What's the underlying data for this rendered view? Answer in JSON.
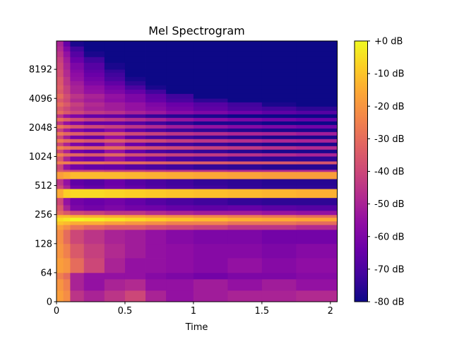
{
  "chart_data": {
    "type": "heatmap",
    "title": "Mel Spectrogram",
    "xlabel": "Time",
    "ylabel": "",
    "xlim": [
      0,
      2.05
    ],
    "ylim": [
      0,
      16120
    ],
    "y_scale": "mel (symlog, octave ticks)",
    "x_ticks": [
      "0",
      "0.5",
      "1",
      "1.5",
      "2"
    ],
    "x_tick_values": [
      0,
      0.5,
      1,
      1.5,
      2
    ],
    "y_ticks": [
      "0",
      "64",
      "128",
      "256",
      "512",
      "1024",
      "2048",
      "4096",
      "8192"
    ],
    "y_tick_values": [
      0,
      64,
      128,
      256,
      512,
      1024,
      2048,
      4096,
      8192
    ],
    "colormap": "plasma",
    "colorbar": {
      "range_db": [
        -80,
        0
      ],
      "tick_labels": [
        "+0 dB",
        "-10 dB",
        "-20 dB",
        "-30 dB",
        "-40 dB",
        "-50 dB",
        "-60 dB",
        "-70 dB",
        "-80 dB"
      ],
      "tick_values": [
        0,
        -10,
        -20,
        -30,
        -40,
        -50,
        -60,
        -70,
        -80
      ]
    },
    "time_edges_s": [
      0,
      0.05,
      0.1,
      0.2,
      0.35,
      0.5,
      0.65,
      0.8,
      1.0,
      1.25,
      1.5,
      1.75,
      2.05
    ],
    "rows": [
      {
        "f": [
          0,
          25
        ],
        "db": [
          -18,
          -22,
          -45,
          -50,
          -45,
          -40,
          -50,
          -55,
          -52,
          -50,
          -50,
          -48
        ]
      },
      {
        "f": [
          25,
          50
        ],
        "db": [
          -20,
          -25,
          -50,
          -55,
          -50,
          -48,
          -55,
          -55,
          -52,
          -55,
          -52,
          -55
        ]
      },
      {
        "f": [
          50,
          64
        ],
        "db": [
          -25,
          -30,
          -50,
          -55,
          -55,
          -55,
          -58,
          -60,
          -62,
          -60,
          -60,
          -58
        ]
      },
      {
        "f": [
          64,
          91
        ],
        "db": [
          -18,
          -20,
          -30,
          -40,
          -50,
          -55,
          -55,
          -56,
          -58,
          -55,
          -58,
          -56
        ]
      },
      {
        "f": [
          91,
          128
        ],
        "db": [
          -20,
          -25,
          -35,
          -42,
          -48,
          -52,
          -55,
          -56,
          -58,
          -58,
          -60,
          -58
        ]
      },
      {
        "f": [
          128,
          179
        ],
        "db": [
          -22,
          -30,
          -40,
          -45,
          -50,
          -52,
          -55,
          -58,
          -60,
          -60,
          -62,
          -62
        ]
      },
      {
        "f": [
          179,
          201
        ],
        "db": [
          -18,
          -22,
          -28,
          -32,
          -35,
          -35,
          -38,
          -40,
          -42,
          -45,
          -45,
          -48
        ]
      },
      {
        "f": [
          201,
          219
        ],
        "db": [
          -10,
          -12,
          -15,
          -15,
          -18,
          -20,
          -22,
          -25,
          -25,
          -28,
          -28,
          -30
        ]
      },
      {
        "f": [
          219,
          239
        ],
        "db": [
          -5,
          -3,
          -1,
          -2,
          -4,
          -6,
          -8,
          -10,
          -12,
          -14,
          -15,
          -16
        ]
      },
      {
        "f": [
          239,
          255
        ],
        "db": [
          -12,
          -12,
          -14,
          -15,
          -16,
          -18,
          -20,
          -22,
          -24,
          -26,
          -28,
          -30
        ]
      },
      {
        "f": [
          255,
          282
        ],
        "db": [
          -30,
          -35,
          -40,
          -42,
          -45,
          -45,
          -48,
          -50,
          -52,
          -52,
          -54,
          -55
        ]
      },
      {
        "f": [
          282,
          322
        ],
        "db": [
          -35,
          -50,
          -60,
          -62,
          -60,
          -62,
          -63,
          -65,
          -66,
          -65,
          -67,
          -68
        ]
      },
      {
        "f": [
          322,
          383
        ],
        "db": [
          -40,
          -55,
          -62,
          -64,
          -62,
          -65,
          -68,
          -70,
          -72,
          -74,
          -75,
          -75
        ]
      },
      {
        "f": [
          383,
          474
        ],
        "db": [
          -15,
          -8,
          -6,
          -6,
          -7,
          -8,
          -9,
          -10,
          -11,
          -12,
          -13,
          -14
        ]
      },
      {
        "f": [
          474,
          516
        ],
        "db": [
          -40,
          -50,
          -62,
          -65,
          -62,
          -65,
          -68,
          -70,
          -72,
          -74,
          -75,
          -75
        ]
      },
      {
        "f": [
          516,
          601
        ],
        "db": [
          -45,
          -55,
          -66,
          -68,
          -64,
          -68,
          -70,
          -72,
          -74,
          -75,
          -76,
          -76
        ]
      },
      {
        "f": [
          601,
          713
        ],
        "db": [
          -18,
          -15,
          -12,
          -12,
          -12,
          -13,
          -14,
          -15,
          -16,
          -17,
          -18,
          -18
        ]
      },
      {
        "f": [
          713,
          750
        ],
        "db": [
          -35,
          -38,
          -40,
          -40,
          -42,
          -42,
          -44,
          -45,
          -46,
          -48,
          -48,
          -48
        ]
      },
      {
        "f": [
          750,
          855
        ],
        "db": [
          -40,
          -55,
          -62,
          -65,
          -65,
          -68,
          -70,
          -72,
          -74,
          -75,
          -76,
          -76
        ]
      },
      {
        "f": [
          855,
          916
        ],
        "db": [
          -25,
          -25,
          -28,
          -28,
          -30,
          -30,
          -32,
          -33,
          -34,
          -35,
          -35,
          -36
        ]
      },
      {
        "f": [
          916,
          1030
        ],
        "db": [
          -35,
          -50,
          -60,
          -62,
          -55,
          -62,
          -66,
          -70,
          -72,
          -74,
          -75,
          -75
        ]
      },
      {
        "f": [
          1030,
          1114
        ],
        "db": [
          -25,
          -30,
          -32,
          -35,
          -32,
          -38,
          -40,
          -42,
          -44,
          -46,
          -48,
          -50
        ]
      },
      {
        "f": [
          1114,
          1213
        ],
        "db": [
          -40,
          -50,
          -62,
          -65,
          -55,
          -65,
          -70,
          -72,
          -74,
          -76,
          -78,
          -78
        ]
      },
      {
        "f": [
          1213,
          1319
        ],
        "db": [
          -24,
          -28,
          -30,
          -33,
          -30,
          -36,
          -38,
          -40,
          -42,
          -44,
          -46,
          -48
        ]
      },
      {
        "f": [
          1319,
          1435
        ],
        "db": [
          -40,
          -50,
          -60,
          -64,
          -52,
          -64,
          -70,
          -72,
          -74,
          -76,
          -78,
          -78
        ]
      },
      {
        "f": [
          1435,
          1561
        ],
        "db": [
          -26,
          -30,
          -33,
          -36,
          -34,
          -38,
          -40,
          -43,
          -45,
          -47,
          -49,
          -50
        ]
      },
      {
        "f": [
          1561,
          1699
        ],
        "db": [
          -40,
          -52,
          -62,
          -65,
          -56,
          -66,
          -70,
          -72,
          -74,
          -76,
          -78,
          -78
        ]
      },
      {
        "f": [
          1699,
          1848
        ],
        "db": [
          -27,
          -31,
          -34,
          -37,
          -36,
          -40,
          -42,
          -45,
          -47,
          -49,
          -50,
          -52
        ]
      },
      {
        "f": [
          1848,
          2010
        ],
        "db": [
          -42,
          -52,
          -60,
          -64,
          -58,
          -66,
          -70,
          -73,
          -75,
          -77,
          -78,
          -78
        ]
      },
      {
        "f": [
          2010,
          2187
        ],
        "db": [
          -28,
          -32,
          -36,
          -40,
          -42,
          -45,
          -48,
          -52,
          -55,
          -58,
          -60,
          -62
        ]
      },
      {
        "f": [
          2187,
          2380
        ],
        "db": [
          -45,
          -55,
          -60,
          -65,
          -65,
          -68,
          -72,
          -75,
          -78,
          -78,
          -80,
          -80
        ]
      },
      {
        "f": [
          2380,
          2590
        ],
        "db": [
          -29,
          -33,
          -38,
          -42,
          -44,
          -47,
          -50,
          -54,
          -57,
          -60,
          -62,
          -64
        ]
      },
      {
        "f": [
          2590,
          2817
        ],
        "db": [
          -45,
          -55,
          -60,
          -65,
          -66,
          -70,
          -74,
          -76,
          -78,
          -80,
          -80,
          -80
        ]
      },
      {
        "f": [
          2817,
          3065
        ],
        "db": [
          -30,
          -35,
          -40,
          -44,
          -46,
          -50,
          -53,
          -57,
          -60,
          -63,
          -66,
          -68
        ]
      },
      {
        "f": [
          3065,
          3390
        ],
        "db": [
          -35,
          -40,
          -45,
          -50,
          -52,
          -55,
          -58,
          -62,
          -66,
          -70,
          -72,
          -75
        ]
      },
      {
        "f": [
          3390,
          3750
        ],
        "db": [
          -30,
          -35,
          -42,
          -48,
          -52,
          -55,
          -60,
          -64,
          -68,
          -72,
          -78,
          -80
        ]
      },
      {
        "f": [
          3750,
          4096
        ],
        "db": [
          -35,
          -40,
          -48,
          -52,
          -56,
          -60,
          -65,
          -70,
          -75,
          -80,
          -80,
          -80
        ]
      },
      {
        "f": [
          4096,
          4590
        ],
        "db": [
          -30,
          -38,
          -45,
          -50,
          -55,
          -60,
          -66,
          -72,
          -80,
          -80,
          -80,
          -80
        ]
      },
      {
        "f": [
          4590,
          5080
        ],
        "db": [
          -35,
          -42,
          -50,
          -55,
          -60,
          -65,
          -72,
          -80,
          -80,
          -80,
          -80,
          -80
        ]
      },
      {
        "f": [
          5080,
          5620
        ],
        "db": [
          -33,
          -42,
          -50,
          -56,
          -62,
          -70,
          -78,
          -80,
          -80,
          -80,
          -80,
          -80
        ]
      },
      {
        "f": [
          5620,
          6220
        ],
        "db": [
          -35,
          -45,
          -52,
          -60,
          -66,
          -75,
          -80,
          -80,
          -80,
          -80,
          -80,
          -80
        ]
      },
      {
        "f": [
          6220,
          6880
        ],
        "db": [
          -35,
          -45,
          -55,
          -62,
          -70,
          -78,
          -80,
          -80,
          -80,
          -80,
          -80,
          -80
        ]
      },
      {
        "f": [
          6880,
          7620
        ],
        "db": [
          -38,
          -48,
          -56,
          -64,
          -72,
          -80,
          -80,
          -80,
          -80,
          -80,
          -80,
          -80
        ]
      },
      {
        "f": [
          7620,
          8192
        ],
        "db": [
          -38,
          -48,
          -58,
          -66,
          -74,
          -80,
          -80,
          -80,
          -80,
          -80,
          -80,
          -80
        ]
      },
      {
        "f": [
          8192,
          9650
        ],
        "db": [
          -40,
          -50,
          -60,
          -68,
          -78,
          -80,
          -80,
          -80,
          -80,
          -80,
          -80,
          -80
        ]
      },
      {
        "f": [
          9650,
          11040
        ],
        "db": [
          -42,
          -52,
          -64,
          -72,
          -80,
          -80,
          -80,
          -80,
          -80,
          -80,
          -80,
          -80
        ]
      },
      {
        "f": [
          11040,
          12640
        ],
        "db": [
          -45,
          -55,
          -68,
          -78,
          -80,
          -80,
          -80,
          -80,
          -80,
          -80,
          -80,
          -80
        ]
      },
      {
        "f": [
          12640,
          14220
        ],
        "db": [
          -48,
          -60,
          -72,
          -80,
          -80,
          -80,
          -80,
          -80,
          -80,
          -80,
          -80,
          -80
        ]
      },
      {
        "f": [
          14220,
          16120
        ],
        "db": [
          -50,
          -65,
          -78,
          -80,
          -80,
          -80,
          -80,
          -80,
          -80,
          -80,
          -80,
          -80
        ]
      }
    ]
  }
}
